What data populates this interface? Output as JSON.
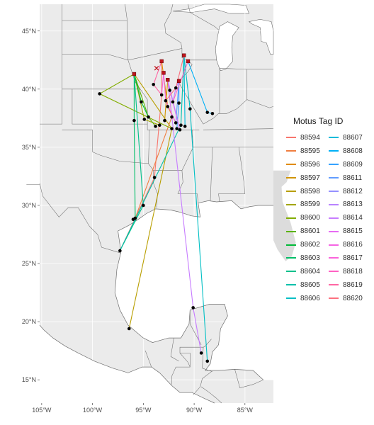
{
  "map": {
    "projection": "geographic (lon/lat)",
    "extent": {
      "lon": [
        -105.2,
        -82.2
      ],
      "lat": [
        13.0,
        47.3
      ]
    },
    "background_color": "#ebebeb",
    "land_color": "#dcdcdc",
    "ocean_color": "#ffffff",
    "border_color": "#6e6e6e",
    "grid_color": "#ffffff",
    "lon_ticks": [
      {
        "value": -105,
        "label": "105°W"
      },
      {
        "value": -100,
        "label": "100°W"
      },
      {
        "value": -95,
        "label": "95°W"
      },
      {
        "value": -90,
        "label": "90°W"
      },
      {
        "value": -85,
        "label": "85°W"
      }
    ],
    "lat_ticks": [
      {
        "value": 45,
        "label": "45°N"
      },
      {
        "value": 40,
        "label": "40°N"
      },
      {
        "value": 35,
        "label": "35°N"
      },
      {
        "value": 30,
        "label": "30°N"
      },
      {
        "value": 25,
        "label": "25°N"
      },
      {
        "value": 20,
        "label": "20°N"
      },
      {
        "value": 15,
        "label": "15°N"
      }
    ]
  },
  "legend": {
    "title": "Motus Tag ID",
    "placement": "right",
    "col1": [
      {
        "id": "88594",
        "color": "#f8766d"
      },
      {
        "id": "88595",
        "color": "#f07e40"
      },
      {
        "id": "88596",
        "color": "#e08b00"
      },
      {
        "id": "88597",
        "color": "#d09400"
      },
      {
        "id": "88598",
        "color": "#b89e00"
      },
      {
        "id": "88599",
        "color": "#a3a500"
      },
      {
        "id": "88600",
        "color": "#82ad00"
      },
      {
        "id": "88601",
        "color": "#5bb300"
      },
      {
        "id": "88602",
        "color": "#00ba38"
      },
      {
        "id": "88603",
        "color": "#00be67"
      },
      {
        "id": "88604",
        "color": "#00c08b"
      },
      {
        "id": "88605",
        "color": "#00c0aa"
      },
      {
        "id": "88606",
        "color": "#00bfc4"
      }
    ],
    "col2": [
      {
        "id": "88607",
        "color": "#00bbda"
      },
      {
        "id": "88608",
        "color": "#00b0f6"
      },
      {
        "id": "88609",
        "color": "#35a2ff"
      },
      {
        "id": "88611",
        "color": "#619cff"
      },
      {
        "id": "88612",
        "color": "#9590ff"
      },
      {
        "id": "88613",
        "color": "#b983ff"
      },
      {
        "id": "88614",
        "color": "#c77cff"
      },
      {
        "id": "88615",
        "color": "#e76bf3"
      },
      {
        "id": "88616",
        "color": "#f564e3"
      },
      {
        "id": "88617",
        "color": "#fa62db"
      },
      {
        "id": "88618",
        "color": "#ff61c3"
      },
      {
        "id": "88619",
        "color": "#ff67a4"
      },
      {
        "id": "88620",
        "color": "#fc717f"
      }
    ]
  },
  "tag_sites": [
    {
      "lon": -95.9,
      "lat": 41.3
    },
    {
      "lon": -93.2,
      "lat": 42.4
    },
    {
      "lon": -92.6,
      "lat": 40.8
    },
    {
      "lon": -91.5,
      "lat": 40.7
    },
    {
      "lon": -91.0,
      "lat": 42.9
    },
    {
      "lon": -90.6,
      "lat": 42.4
    },
    {
      "lon": -93.0,
      "lat": 41.4
    }
  ],
  "lost_site": {
    "lon": -93.7,
    "lat": 41.8
  },
  "detections": [
    {
      "lon": -99.3,
      "lat": 39.6
    },
    {
      "lon": -95.2,
      "lat": 38.9
    },
    {
      "lon": -94.0,
      "lat": 40.4
    },
    {
      "lon": -93.2,
      "lat": 39.5
    },
    {
      "lon": -92.8,
      "lat": 39.0
    },
    {
      "lon": -92.6,
      "lat": 38.5
    },
    {
      "lon": -92.2,
      "lat": 37.6
    },
    {
      "lon": -91.8,
      "lat": 37.1
    },
    {
      "lon": -92.9,
      "lat": 37.3
    },
    {
      "lon": -92.4,
      "lat": 39.9
    },
    {
      "lon": -91.8,
      "lat": 40.1
    },
    {
      "lon": -92.1,
      "lat": 38.9
    },
    {
      "lon": -91.5,
      "lat": 38.8
    },
    {
      "lon": -91.3,
      "lat": 36.9
    },
    {
      "lon": -90.9,
      "lat": 36.8
    },
    {
      "lon": -91.4,
      "lat": 36.5
    },
    {
      "lon": -90.4,
      "lat": 38.3
    },
    {
      "lon": -88.7,
      "lat": 38.0
    },
    {
      "lon": -88.2,
      "lat": 37.9
    },
    {
      "lon": -94.5,
      "lat": 37.6
    },
    {
      "lon": -95.9,
      "lat": 37.3
    },
    {
      "lon": -94.9,
      "lat": 37.4
    },
    {
      "lon": -93.8,
      "lat": 36.8
    },
    {
      "lon": -93.4,
      "lat": 36.9
    },
    {
      "lon": -92.2,
      "lat": 36.6
    },
    {
      "lon": -91.7,
      "lat": 36.6
    },
    {
      "lon": -93.9,
      "lat": 32.4
    },
    {
      "lon": -95.0,
      "lat": 30.0
    },
    {
      "lon": -95.8,
      "lat": 28.9
    },
    {
      "lon": -96.0,
      "lat": 28.8
    },
    {
      "lon": -97.3,
      "lat": 26.1
    },
    {
      "lon": -96.4,
      "lat": 19.4
    },
    {
      "lon": -90.1,
      "lat": 21.2
    },
    {
      "lon": -89.3,
      "lat": 17.3
    },
    {
      "lon": -88.7,
      "lat": 16.6
    }
  ],
  "tracks": [
    {
      "id": "88594",
      "points": [
        [
          -93.2,
          42.4
        ],
        [
          -93.2,
          39.5
        ],
        [
          -93.9,
          32.4
        ],
        [
          -97.3,
          26.1
        ]
      ]
    },
    {
      "id": "88595",
      "points": [
        [
          -92.6,
          40.8
        ],
        [
          -92.2,
          37.6
        ],
        [
          -95.8,
          28.9
        ]
      ]
    },
    {
      "id": "88596",
      "points": [
        [
          -93.2,
          42.4
        ],
        [
          -92.6,
          38.5
        ],
        [
          -91.8,
          37.1
        ]
      ]
    },
    {
      "id": "88597",
      "points": [
        [
          -92.6,
          40.8
        ],
        [
          -92.9,
          37.3
        ]
      ]
    },
    {
      "id": "88598",
      "points": [
        [
          -95.9,
          41.3
        ],
        [
          -92.2,
          36.6
        ],
        [
          -96.4,
          19.4
        ]
      ]
    },
    {
      "id": "88599",
      "points": [
        [
          -95.9,
          41.3
        ],
        [
          -94.9,
          37.4
        ],
        [
          -93.4,
          36.9
        ]
      ]
    },
    {
      "id": "88600",
      "points": [
        [
          -95.9,
          41.3
        ],
        [
          -99.3,
          39.6
        ],
        [
          -92.2,
          36.6
        ]
      ]
    },
    {
      "id": "88601",
      "points": [
        [
          -95.9,
          41.3
        ],
        [
          -94.5,
          37.6
        ],
        [
          -93.8,
          36.8
        ]
      ]
    },
    {
      "id": "88602",
      "points": [
        [
          -95.9,
          41.3
        ],
        [
          -95.2,
          38.9
        ],
        [
          -94.5,
          37.6
        ]
      ]
    },
    {
      "id": "88603",
      "points": [
        [
          -95.9,
          41.3
        ],
        [
          -95.9,
          37.3
        ],
        [
          -95.8,
          28.9
        ]
      ]
    },
    {
      "id": "88604",
      "points": [
        [
          -95.9,
          41.3
        ],
        [
          -95.0,
          30.0
        ],
        [
          -97.3,
          26.1
        ]
      ]
    },
    {
      "id": "88605",
      "points": [
        [
          -91.0,
          42.9
        ],
        [
          -91.3,
          36.9
        ],
        [
          -97.3,
          26.1
        ]
      ]
    },
    {
      "id": "88606",
      "points": [
        [
          -91.0,
          42.9
        ],
        [
          -90.4,
          38.3
        ],
        [
          -88.7,
          16.6
        ]
      ]
    },
    {
      "id": "88607",
      "points": [
        [
          -91.0,
          42.9
        ],
        [
          -90.9,
          36.8
        ]
      ]
    },
    {
      "id": "88608",
      "points": [
        [
          -90.6,
          42.4
        ],
        [
          -88.7,
          38.0
        ],
        [
          -88.2,
          37.9
        ]
      ]
    },
    {
      "id": "88609",
      "points": [
        [
          -91.5,
          40.7
        ],
        [
          -91.5,
          38.8
        ],
        [
          -91.7,
          36.6
        ]
      ]
    },
    {
      "id": "88611",
      "points": [
        [
          -91.5,
          40.7
        ],
        [
          -91.8,
          37.1
        ]
      ]
    },
    {
      "id": "88612",
      "points": [
        [
          -92.6,
          40.8
        ],
        [
          -91.4,
          36.5
        ]
      ]
    },
    {
      "id": "88613",
      "points": [
        [
          -91.5,
          40.7
        ],
        [
          -91.8,
          40.1
        ],
        [
          -92.1,
          38.9
        ]
      ]
    },
    {
      "id": "88614",
      "points": [
        [
          -92.6,
          40.8
        ],
        [
          -90.1,
          21.2
        ],
        [
          -89.3,
          17.3
        ]
      ]
    },
    {
      "id": "88615",
      "points": [
        [
          -92.6,
          40.8
        ],
        [
          -92.4,
          39.9
        ],
        [
          -91.4,
          36.5
        ]
      ]
    },
    {
      "id": "88616",
      "points": [
        [
          -93.0,
          41.4
        ],
        [
          -92.8,
          39.0
        ],
        [
          -91.8,
          37.1
        ]
      ]
    },
    {
      "id": "88617",
      "points": [
        [
          -93.0,
          41.4
        ],
        [
          -93.2,
          39.5
        ]
      ]
    },
    {
      "id": "88618",
      "points": [
        [
          -90.6,
          42.4
        ],
        [
          -92.1,
          38.9
        ]
      ]
    },
    {
      "id": "88619",
      "points": [
        [
          -93.2,
          42.4
        ],
        [
          -94.0,
          40.4
        ],
        [
          -93.2,
          39.5
        ]
      ]
    },
    {
      "id": "88620",
      "points": [
        [
          -91.0,
          42.9
        ],
        [
          -91.8,
          40.1
        ],
        [
          -92.8,
          39.0
        ]
      ]
    }
  ]
}
